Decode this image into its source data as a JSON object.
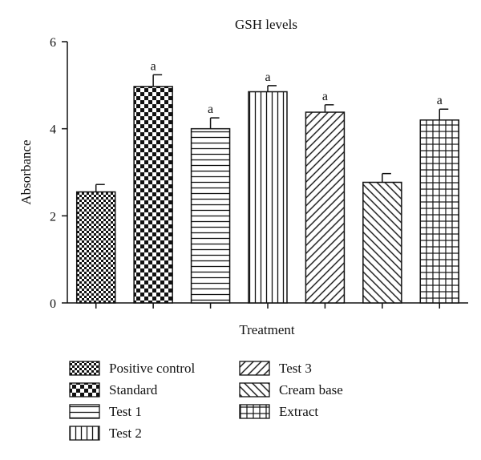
{
  "chart_data": {
    "type": "bar",
    "title": "GSH levels",
    "xlabel": "Treatment",
    "ylabel": "Absorbance",
    "ylim": [
      0,
      6
    ],
    "yticks": [
      0,
      2,
      4,
      6
    ],
    "grid": false,
    "legend_position": "bottom",
    "categories": [
      "Positive control",
      "Standard",
      "Test 1",
      "Test 2",
      "Test 3",
      "Cream base",
      "Extract"
    ],
    "values": [
      2.55,
      4.97,
      4.0,
      4.85,
      4.38,
      2.77,
      4.2
    ],
    "errors": [
      0.17,
      0.27,
      0.25,
      0.14,
      0.17,
      0.2,
      0.25
    ],
    "annotations": [
      "",
      "a",
      "a",
      "a",
      "a",
      "",
      "a"
    ],
    "patterns": [
      "checker-fine",
      "checker-coarse",
      "horizontal-lines",
      "vertical-lines",
      "diagonal-right",
      "diagonal-left",
      "grid"
    ],
    "colors": {
      "ink": "#111111",
      "background": "#ffffff"
    }
  }
}
